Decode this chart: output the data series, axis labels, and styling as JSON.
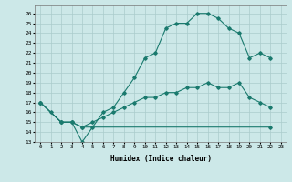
{
  "xlabel": "Humidex (Indice chaleur)",
  "background_color": "#cce8e8",
  "grid_color": "#aacccc",
  "line_color": "#1a7a6e",
  "xlim": [
    -0.5,
    23.5
  ],
  "ylim": [
    13,
    26.8
  ],
  "yticks": [
    13,
    14,
    15,
    16,
    17,
    18,
    19,
    20,
    21,
    22,
    23,
    24,
    25,
    26
  ],
  "xticks": [
    0,
    1,
    2,
    3,
    4,
    5,
    6,
    7,
    8,
    9,
    10,
    11,
    12,
    13,
    14,
    15,
    16,
    17,
    18,
    19,
    20,
    21,
    22,
    23
  ],
  "line1_x": [
    0,
    1,
    2,
    3,
    4,
    5,
    6,
    7,
    8,
    9,
    10,
    11,
    12,
    13,
    14,
    15,
    16,
    17,
    18,
    19,
    20,
    21,
    22
  ],
  "line1_y": [
    17,
    16,
    15,
    15,
    13,
    14.5,
    16,
    16.5,
    18,
    19.5,
    21.5,
    22,
    24.5,
    25,
    25,
    26,
    26,
    25.5,
    24.5,
    24,
    21.5,
    22,
    21.5
  ],
  "line2_x": [
    0,
    2,
    3,
    4,
    5,
    6,
    7,
    8,
    9,
    10,
    11,
    12,
    13,
    14,
    15,
    16,
    17,
    18,
    19,
    20,
    21,
    22
  ],
  "line2_y": [
    17,
    15,
    15,
    14.5,
    15,
    15.5,
    16,
    16.5,
    17,
    17.5,
    17.5,
    18,
    18,
    18.5,
    18.5,
    19,
    18.5,
    18.5,
    19,
    17.5,
    17,
    16.5
  ],
  "line3_x": [
    0,
    2,
    3,
    4,
    22
  ],
  "line3_y": [
    17,
    15,
    15,
    14.5,
    14.5
  ]
}
